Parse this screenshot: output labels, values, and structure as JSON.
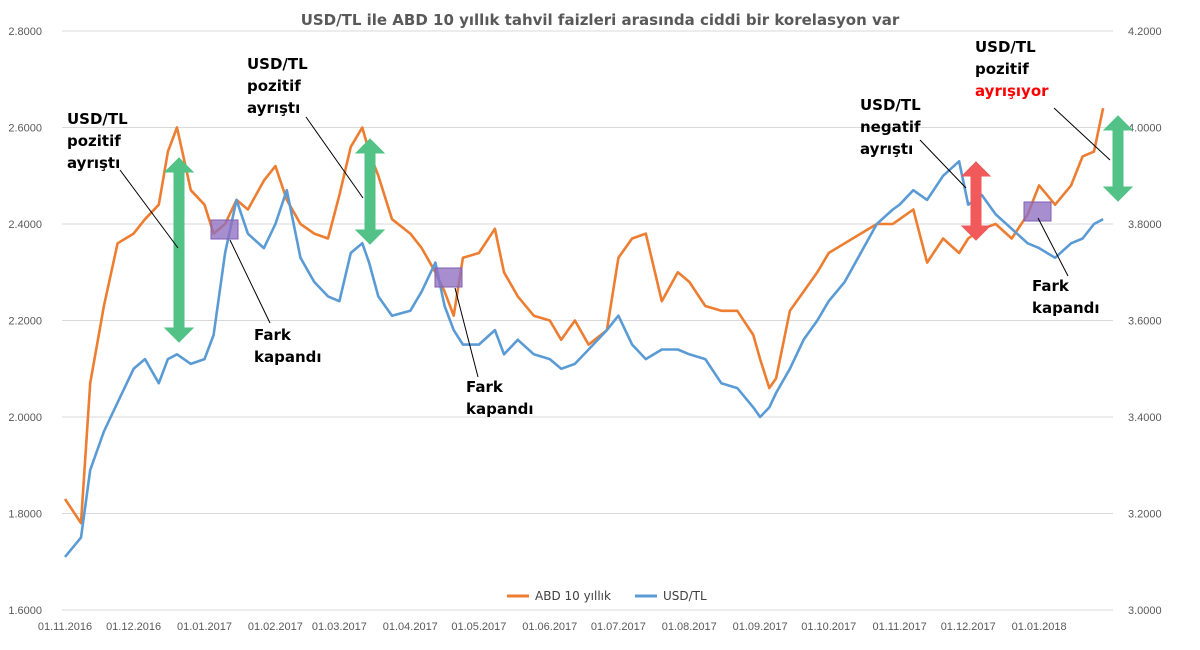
{
  "chart_data": {
    "type": "line",
    "title": "USD/TL ile ABD 10 yıllık tahvil faizleri arasında ciddi bir korelasyon var",
    "x_tick_labels": [
      "01.11.2016",
      "01.12.2016",
      "01.01.2017",
      "01.02.2017",
      "01.03.2017",
      "01.04.2017",
      "01.05.2017",
      "01.06.2017",
      "01.07.2017",
      "01.08.2017",
      "01.09.2017",
      "01.10.2017",
      "01.11.2017",
      "01.12.2017",
      "01.01.2018"
    ],
    "y_left": {
      "ticks": [
        "1.6000",
        "1.8000",
        "2.0000",
        "2.2000",
        "2.4000",
        "2.6000",
        "2.8000"
      ],
      "ylim": [
        1.6,
        2.8
      ]
    },
    "y_right": {
      "ticks": [
        "3.0000",
        "3.2000",
        "3.4000",
        "3.6000",
        "3.8000",
        "4.0000",
        "4.2000"
      ],
      "ylim": [
        3.0,
        4.2
      ]
    },
    "grid": true,
    "legend_position": "bottom",
    "series": [
      {
        "name": "ABD 10 yıllık",
        "axis": "left",
        "color": "#ed7d31",
        "x": [
          "01.11.2016",
          "08.11.2016",
          "12.11.2016",
          "18.11.2016",
          "24.11.2016",
          "01.12.2016",
          "06.12.2016",
          "12.12.2016",
          "16.12.2016",
          "20.12.2016",
          "26.12.2016",
          "01.01.2017",
          "05.01.2017",
          "10.01.2017",
          "15.01.2017",
          "20.01.2017",
          "27.01.2017",
          "01.02.2017",
          "06.02.2017",
          "12.02.2017",
          "18.02.2017",
          "24.02.2017",
          "01.03.2017",
          "06.03.2017",
          "11.03.2017",
          "14.03.2017",
          "18.03.2017",
          "24.03.2017",
          "01.04.2017",
          "06.04.2017",
          "12.04.2017",
          "16.04.2017",
          "20.04.2017",
          "24.04.2017",
          "01.05.2017",
          "08.05.2017",
          "12.05.2017",
          "18.05.2017",
          "25.05.2017",
          "01.06.2017",
          "06.06.2017",
          "12.06.2017",
          "18.06.2017",
          "26.06.2017",
          "01.07.2017",
          "07.07.2017",
          "13.07.2017",
          "20.07.2017",
          "27.07.2017",
          "01.08.2017",
          "08.08.2017",
          "15.08.2017",
          "22.08.2017",
          "29.08.2017",
          "01.09.2017",
          "05.09.2017",
          "08.09.2017",
          "14.09.2017",
          "20.09.2017",
          "26.09.2017",
          "01.10.2017",
          "08.10.2017",
          "15.10.2017",
          "22.10.2017",
          "29.10.2017",
          "01.11.2017",
          "07.11.2017",
          "13.11.2017",
          "20.11.2017",
          "27.11.2017",
          "01.12.2017",
          "07.12.2017",
          "13.12.2017",
          "20.12.2017",
          "27.12.2017",
          "01.01.2018",
          "08.01.2018",
          "15.01.2018",
          "20.01.2018",
          "25.01.2018",
          "29.01.2018"
        ],
        "values": [
          1.83,
          1.78,
          2.07,
          2.23,
          2.36,
          2.38,
          2.41,
          2.44,
          2.55,
          2.6,
          2.47,
          2.44,
          2.38,
          2.4,
          2.45,
          2.43,
          2.49,
          2.52,
          2.45,
          2.4,
          2.38,
          2.37,
          2.46,
          2.56,
          2.6,
          2.55,
          2.5,
          2.41,
          2.38,
          2.35,
          2.3,
          2.26,
          2.21,
          2.33,
          2.34,
          2.39,
          2.3,
          2.25,
          2.21,
          2.2,
          2.16,
          2.2,
          2.15,
          2.18,
          2.33,
          2.37,
          2.38,
          2.24,
          2.3,
          2.28,
          2.23,
          2.22,
          2.22,
          2.17,
          2.12,
          2.06,
          2.08,
          2.22,
          2.26,
          2.3,
          2.34,
          2.36,
          2.38,
          2.4,
          2.4,
          2.41,
          2.43,
          2.32,
          2.37,
          2.34,
          2.37,
          2.39,
          2.4,
          2.37,
          2.42,
          2.48,
          2.44,
          2.48,
          2.54,
          2.55,
          2.64
        ]
      },
      {
        "name": "USD/TL",
        "axis": "right",
        "color": "#5b9bd5",
        "x": [
          "01.11.2016",
          "08.11.2016",
          "12.11.2016",
          "18.11.2016",
          "24.11.2016",
          "01.12.2016",
          "06.12.2016",
          "12.12.2016",
          "16.12.2016",
          "20.12.2016",
          "26.12.2016",
          "01.01.2017",
          "05.01.2017",
          "10.01.2017",
          "15.01.2017",
          "20.01.2017",
          "27.01.2017",
          "01.02.2017",
          "06.02.2017",
          "12.02.2017",
          "18.02.2017",
          "24.02.2017",
          "01.03.2017",
          "06.03.2017",
          "11.03.2017",
          "14.03.2017",
          "18.03.2017",
          "24.03.2017",
          "01.04.2017",
          "06.04.2017",
          "12.04.2017",
          "16.04.2017",
          "20.04.2017",
          "24.04.2017",
          "01.05.2017",
          "08.05.2017",
          "12.05.2017",
          "18.05.2017",
          "25.05.2017",
          "01.06.2017",
          "06.06.2017",
          "12.06.2017",
          "18.06.2017",
          "26.06.2017",
          "01.07.2017",
          "07.07.2017",
          "13.07.2017",
          "20.07.2017",
          "27.07.2017",
          "01.08.2017",
          "08.08.2017",
          "15.08.2017",
          "22.08.2017",
          "29.08.2017",
          "01.09.2017",
          "05.09.2017",
          "08.09.2017",
          "14.09.2017",
          "20.09.2017",
          "26.09.2017",
          "01.10.2017",
          "08.10.2017",
          "15.10.2017",
          "22.10.2017",
          "29.10.2017",
          "01.11.2017",
          "07.11.2017",
          "13.11.2017",
          "20.11.2017",
          "27.11.2017",
          "01.12.2017",
          "07.12.2017",
          "13.12.2017",
          "20.12.2017",
          "27.12.2017",
          "01.01.2018",
          "08.01.2018",
          "15.01.2018",
          "20.01.2018",
          "25.01.2018",
          "29.01.2018"
        ],
        "values": [
          3.11,
          3.15,
          3.29,
          3.37,
          3.43,
          3.5,
          3.52,
          3.47,
          3.52,
          3.53,
          3.51,
          3.52,
          3.57,
          3.74,
          3.85,
          3.78,
          3.75,
          3.8,
          3.87,
          3.73,
          3.68,
          3.65,
          3.64,
          3.74,
          3.76,
          3.72,
          3.65,
          3.61,
          3.62,
          3.66,
          3.72,
          3.63,
          3.58,
          3.55,
          3.55,
          3.58,
          3.53,
          3.56,
          3.53,
          3.52,
          3.5,
          3.51,
          3.54,
          3.58,
          3.61,
          3.55,
          3.52,
          3.54,
          3.54,
          3.53,
          3.52,
          3.47,
          3.46,
          3.42,
          3.4,
          3.42,
          3.45,
          3.5,
          3.56,
          3.6,
          3.64,
          3.68,
          3.74,
          3.8,
          3.83,
          3.84,
          3.87,
          3.85,
          3.9,
          3.93,
          3.84,
          3.86,
          3.82,
          3.79,
          3.76,
          3.75,
          3.73,
          3.76,
          3.77,
          3.8,
          3.81
        ]
      }
    ],
    "annotations": [
      {
        "lines": [
          "USD/TL",
          "pozitif",
          "ayrıştı"
        ]
      },
      {
        "lines": [
          "USD/TL",
          "pozitif",
          "ayrıştı"
        ]
      },
      {
        "lines": [
          "Fark",
          "kapandı"
        ]
      },
      {
        "lines": [
          "Fark",
          "kapandı"
        ]
      },
      {
        "lines": [
          "USD/TL",
          "negatif",
          "ayrıştı"
        ]
      },
      {
        "lines": [
          "USD/TL",
          "pozitif",
          "ayrışıyor"
        ],
        "highlight_last": true,
        "highlight_color": "#ff0000"
      },
      {
        "lines": [
          "Fark",
          "kapandı"
        ]
      }
    ],
    "arrow_colors": {
      "green": "#52c287",
      "red": "#f05a5a"
    },
    "box_color": "#8e6fc1"
  }
}
